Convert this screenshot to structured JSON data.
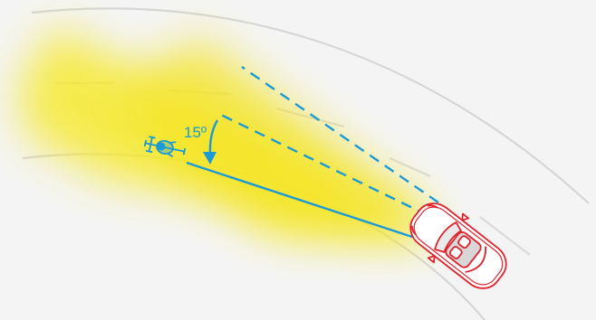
{
  "diagram": {
    "angle_label": "15º",
    "angle_degrees": 15
  },
  "colors": {
    "background": "#f4f4f4",
    "road_line": "#d4d4d4",
    "beam_yellow": "#f3e62c",
    "accent_blue": "#1b9ad6",
    "car_red": "#e0222c",
    "car_body": "#ffffff"
  },
  "icons": {
    "cyclist": "bicycle-rider-icon",
    "vehicle": "car-top-view-icon"
  }
}
